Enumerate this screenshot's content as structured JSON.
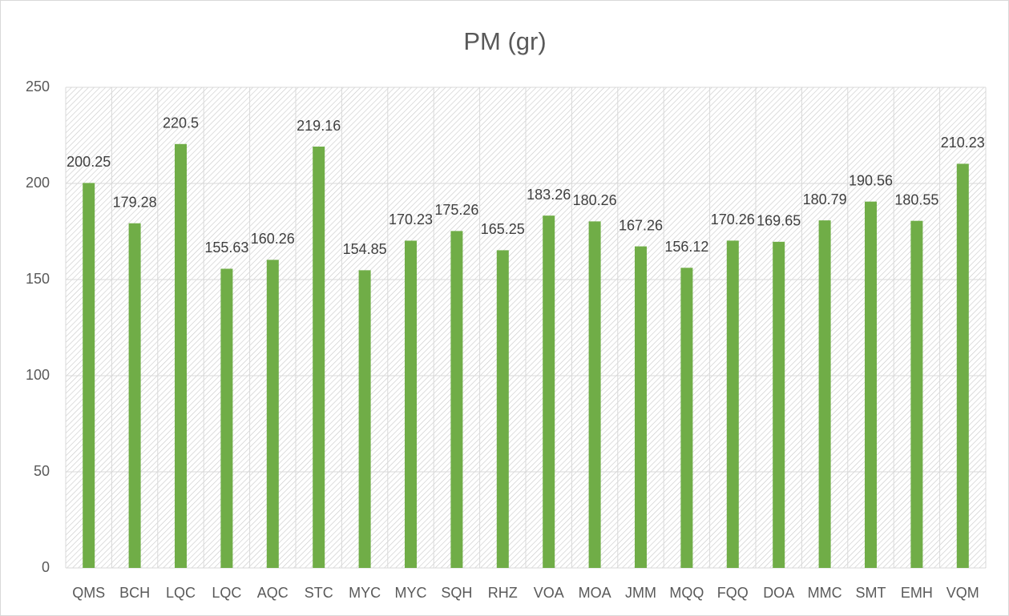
{
  "chart_data": {
    "type": "bar",
    "title": "PM (gr)",
    "categories": [
      "QMS",
      "BCH",
      "LQC",
      "LQC",
      "AQC",
      "STC",
      "MYC",
      "MYC",
      "SQH",
      "RHZ",
      "VOA",
      "MOA",
      "JMM",
      "MQQ",
      "FQQ",
      "DOA",
      "MMC",
      "SMT",
      "EMH",
      "VQM"
    ],
    "values": [
      200.25,
      179.28,
      220.5,
      155.63,
      160.26,
      219.16,
      154.85,
      170.23,
      175.26,
      165.25,
      183.26,
      180.26,
      167.26,
      156.12,
      170.26,
      169.65,
      180.79,
      190.56,
      180.55,
      210.23
    ],
    "color": "#70ad47",
    "ylim": [
      0,
      250
    ],
    "yticks": [
      0,
      50,
      100,
      150,
      200,
      250
    ],
    "grid": true
  }
}
